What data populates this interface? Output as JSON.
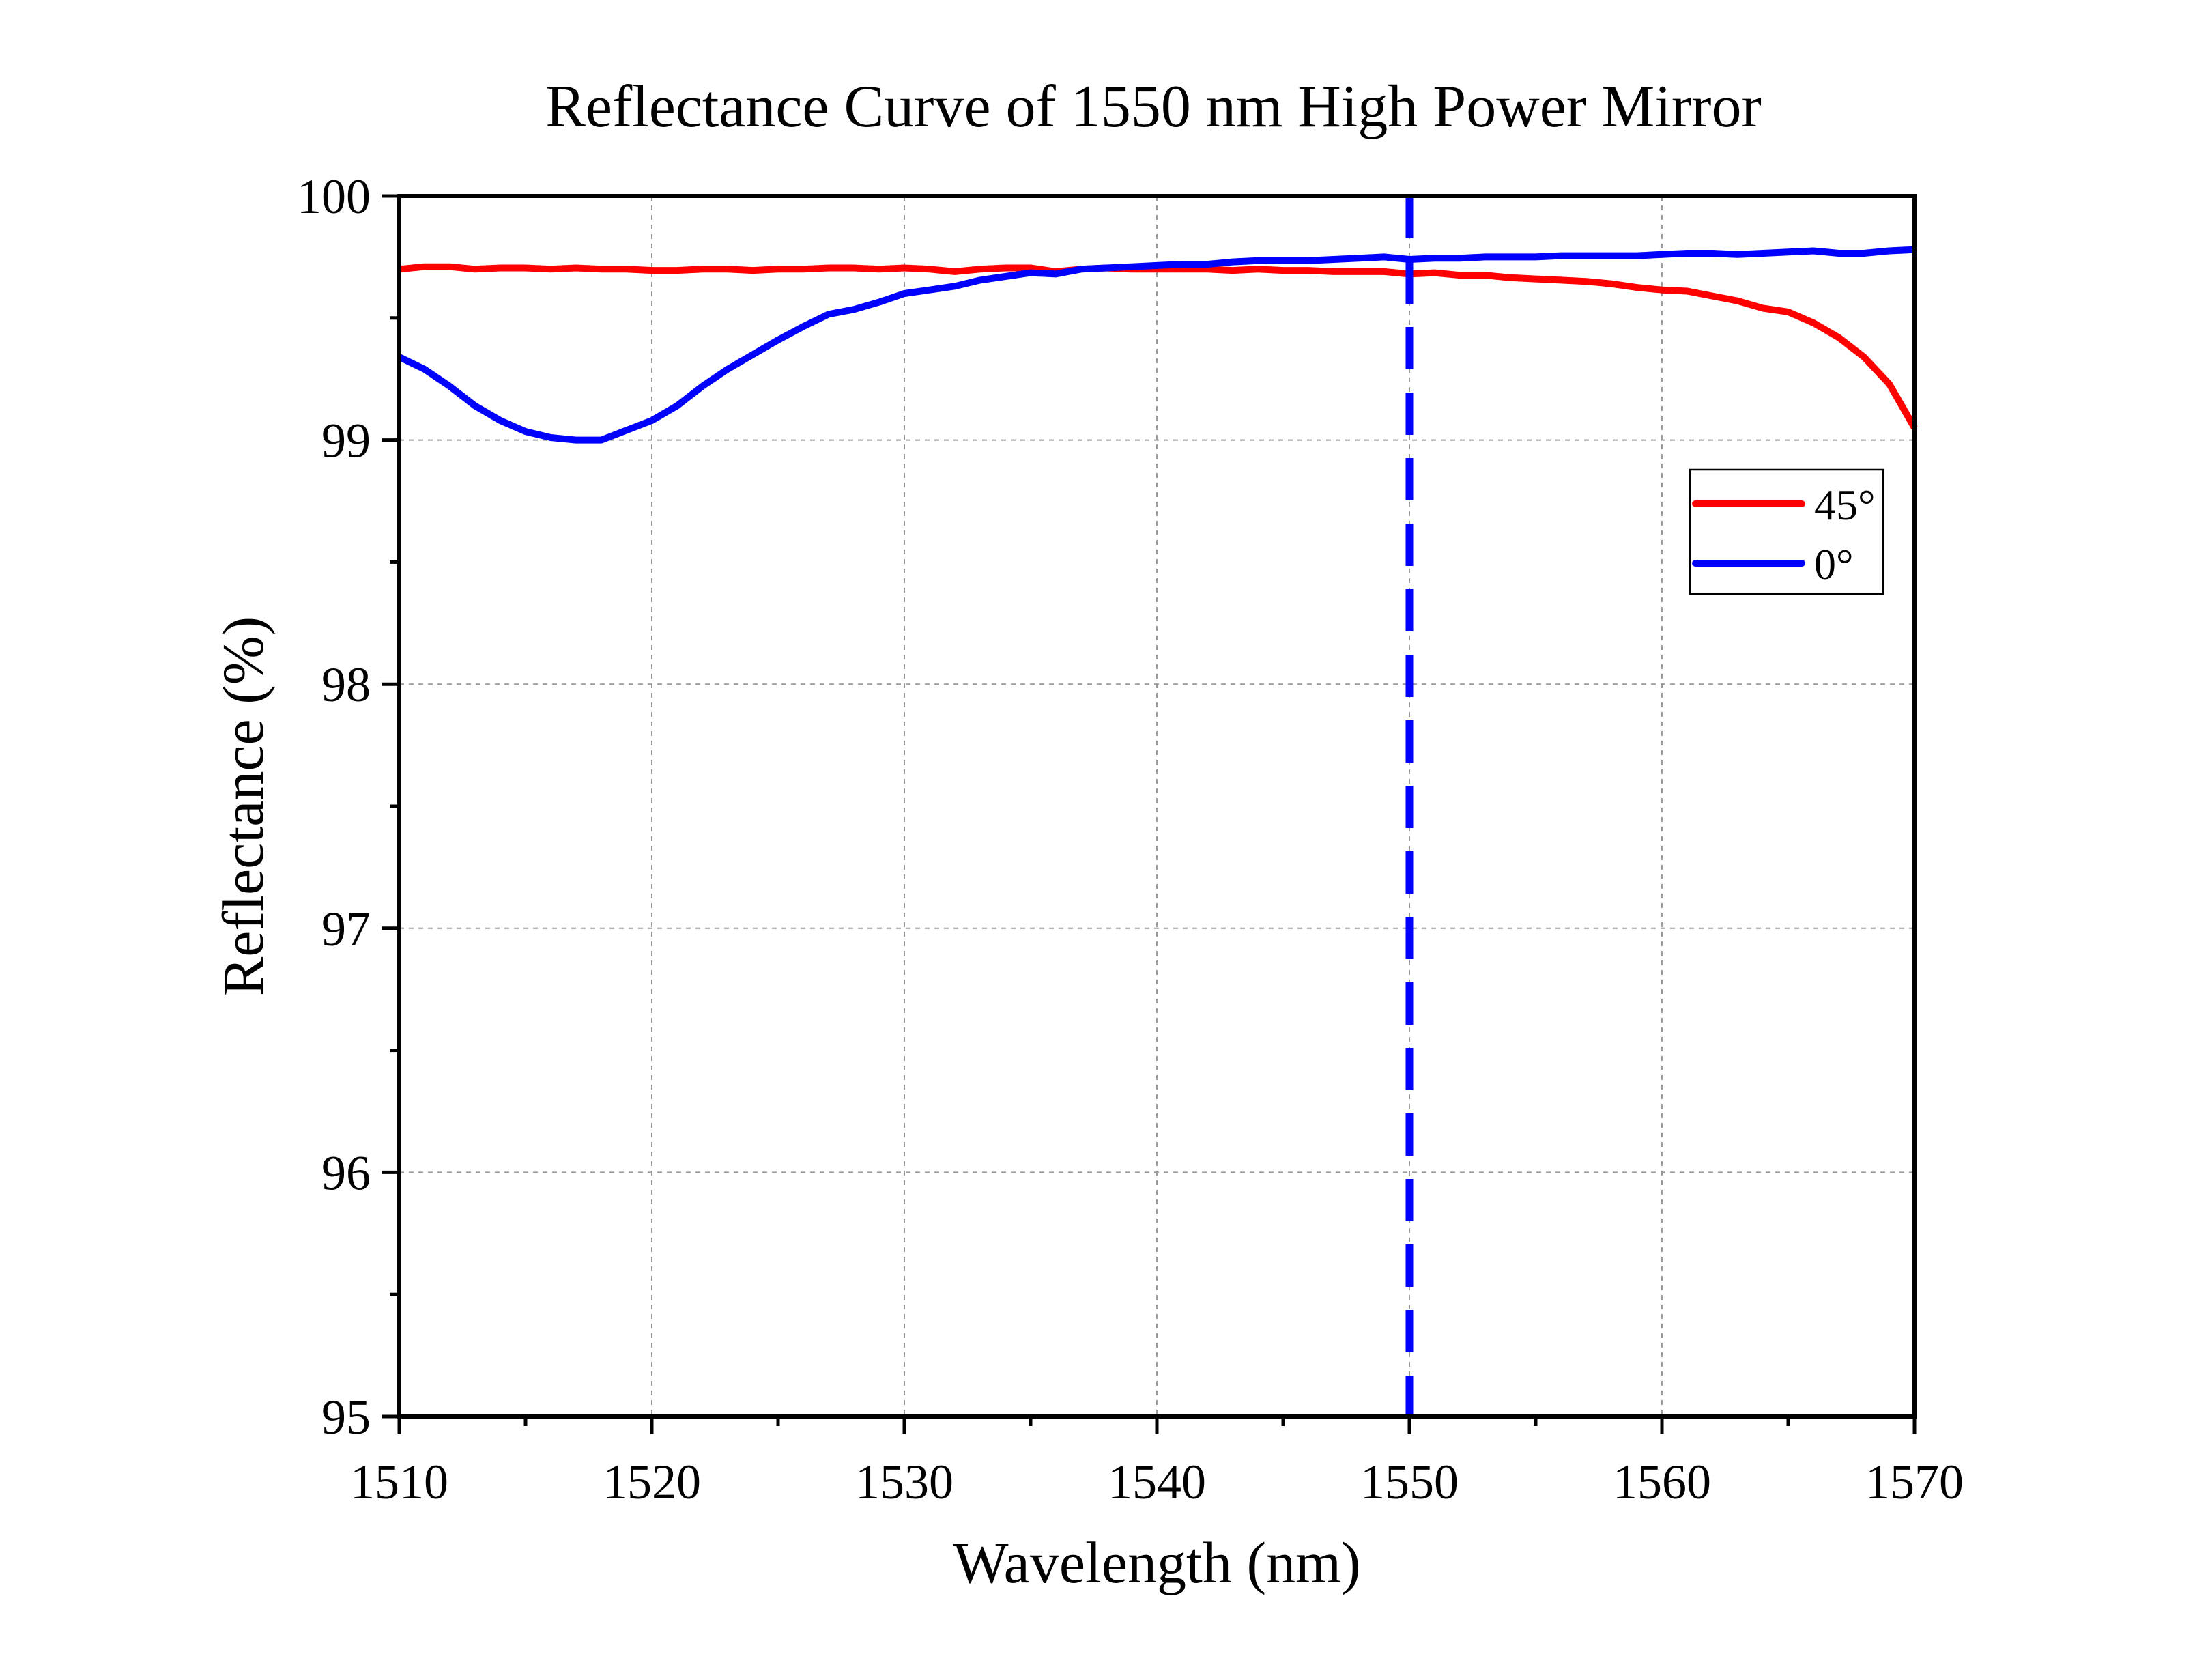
{
  "chart_data": {
    "type": "line",
    "title": "Reflectance Curve of 1550 nm High Power Mirror",
    "xlabel": "Wavelength (nm)",
    "ylabel": "Reflectance (%)",
    "xlim": [
      1510,
      1570
    ],
    "ylim": [
      95,
      100
    ],
    "xticks": [
      1510,
      1520,
      1530,
      1540,
      1550,
      1560,
      1570
    ],
    "yticks": [
      95,
      96,
      97,
      98,
      99,
      100
    ],
    "grid": true,
    "legend_position": "right",
    "series": [
      {
        "name": "45°",
        "color": "#ff0000",
        "x": [
          1510,
          1511,
          1512,
          1513,
          1514,
          1515,
          1516,
          1517,
          1518,
          1519,
          1520,
          1521,
          1522,
          1523,
          1524,
          1525,
          1526,
          1527,
          1528,
          1529,
          1530,
          1531,
          1532,
          1533,
          1534,
          1535,
          1536,
          1537,
          1538,
          1539,
          1540,
          1541,
          1542,
          1543,
          1544,
          1545,
          1546,
          1547,
          1548,
          1549,
          1550,
          1551,
          1552,
          1553,
          1554,
          1555,
          1556,
          1557,
          1558,
          1559,
          1560,
          1561,
          1562,
          1563,
          1564,
          1565,
          1566,
          1567,
          1568,
          1569,
          1570
        ],
        "y": [
          99.7,
          99.71,
          99.71,
          99.7,
          99.705,
          99.705,
          99.7,
          99.705,
          99.7,
          99.7,
          99.695,
          99.695,
          99.7,
          99.7,
          99.695,
          99.7,
          99.7,
          99.705,
          99.705,
          99.7,
          99.705,
          99.7,
          99.69,
          99.7,
          99.705,
          99.705,
          99.69,
          99.7,
          99.705,
          99.7,
          99.7,
          99.7,
          99.7,
          99.695,
          99.7,
          99.695,
          99.695,
          99.69,
          99.69,
          99.69,
          99.68,
          99.685,
          99.675,
          99.675,
          99.665,
          99.66,
          99.655,
          99.65,
          99.64,
          99.625,
          99.615,
          99.61,
          99.59,
          99.57,
          99.54,
          99.525,
          99.48,
          99.42,
          99.34,
          99.23,
          99.05
        ]
      },
      {
        "name": "0°",
        "color": "#0000ff",
        "x": [
          1510,
          1511,
          1512,
          1513,
          1514,
          1515,
          1516,
          1517,
          1518,
          1519,
          1520,
          1521,
          1522,
          1523,
          1524,
          1525,
          1526,
          1527,
          1528,
          1529,
          1530,
          1531,
          1532,
          1533,
          1534,
          1535,
          1536,
          1537,
          1538,
          1539,
          1540,
          1541,
          1542,
          1543,
          1544,
          1545,
          1546,
          1547,
          1548,
          1549,
          1550,
          1551,
          1552,
          1553,
          1554,
          1555,
          1556,
          1557,
          1558,
          1559,
          1560,
          1561,
          1562,
          1563,
          1564,
          1565,
          1566,
          1567,
          1568,
          1569,
          1570
        ],
        "y": [
          99.34,
          99.29,
          99.22,
          99.14,
          99.08,
          99.035,
          99.01,
          99.0,
          99.0,
          99.04,
          99.08,
          99.14,
          99.22,
          99.29,
          99.35,
          99.41,
          99.465,
          99.515,
          99.535,
          99.565,
          99.6,
          99.615,
          99.63,
          99.655,
          99.67,
          99.685,
          99.68,
          99.7,
          99.705,
          99.71,
          99.715,
          99.72,
          99.72,
          99.73,
          99.735,
          99.735,
          99.735,
          99.74,
          99.745,
          99.75,
          99.74,
          99.745,
          99.745,
          99.75,
          99.75,
          99.75,
          99.755,
          99.755,
          99.755,
          99.755,
          99.76,
          99.765,
          99.765,
          99.76,
          99.765,
          99.77,
          99.775,
          99.765,
          99.765,
          99.775,
          99.78
        ]
      }
    ],
    "vertical_marker": {
      "x": 1550,
      "color": "#0000ff",
      "style": "dashed"
    }
  }
}
